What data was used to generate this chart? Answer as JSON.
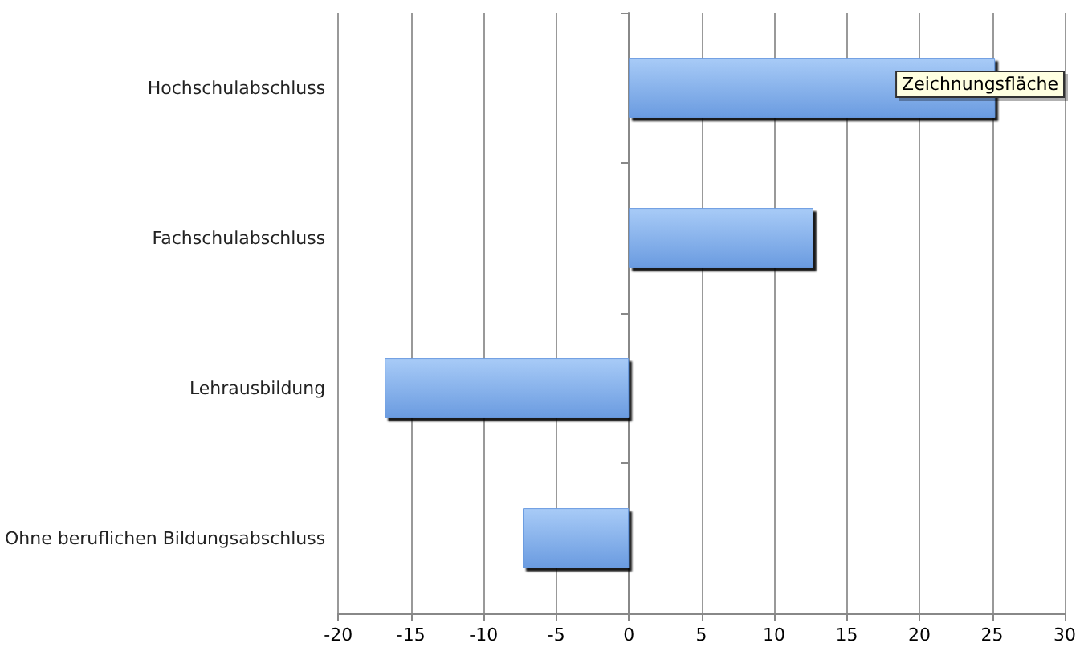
{
  "chart_data": {
    "type": "bar",
    "orientation": "horizontal",
    "categories": [
      "Hochschulabschluss",
      "Fachschulabschluss",
      "Lehrausbildung",
      "Ohne beruflichen Bildungsabschluss"
    ],
    "values": [
      25.2,
      12.7,
      -16.8,
      -7.3
    ],
    "color": "#6a9be0",
    "xlim": [
      -20,
      30
    ],
    "xticks": [
      -20,
      -15,
      -10,
      -5,
      0,
      5,
      10,
      15,
      20,
      25,
      30
    ],
    "grid": "x",
    "annotations": [
      "Zeichnungsfläche"
    ]
  }
}
